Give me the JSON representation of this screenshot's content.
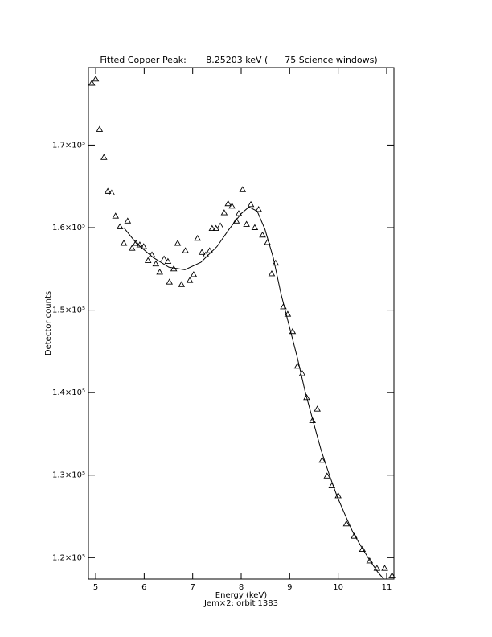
{
  "chart_data": {
    "type": "scatter",
    "title": "Fitted Copper Peak:       8.25203 keV (      75 Science windows)",
    "x_label": "Energy (keV)",
    "subtitle": "Jem×2: orbit 1383",
    "y_label": "Detector counts",
    "xlim": [
      4.85,
      11.15
    ],
    "ylim": [
      117400,
      179400
    ],
    "xticks": [
      5,
      6,
      7,
      8,
      9,
      10,
      11
    ],
    "yticks": [
      {
        "value": 120000,
        "label": "1.2×10⁵"
      },
      {
        "value": 130000,
        "label": "1.3×10⁵"
      },
      {
        "value": 140000,
        "label": "1.4×10⁵"
      },
      {
        "value": 150000,
        "label": "1.5×10⁵"
      },
      {
        "value": 160000,
        "label": "1.6×10⁵"
      },
      {
        "value": 170000,
        "label": "1.7×10⁵"
      }
    ],
    "color": "#000000",
    "series": [
      {
        "kind": "markers",
        "x": [
          4.92,
          5.0,
          5.08,
          5.17,
          5.25,
          5.33,
          5.41,
          5.5,
          5.58,
          5.66,
          5.75,
          5.83,
          5.91,
          5.99,
          6.08,
          6.16,
          6.24,
          6.32,
          6.41,
          6.49,
          6.52,
          6.61,
          6.69,
          6.77,
          6.85,
          6.94,
          7.02,
          7.1,
          7.19,
          7.27,
          7.35,
          7.4,
          7.48,
          7.57,
          7.65,
          7.73,
          7.81,
          7.9,
          7.95,
          8.03,
          8.11,
          8.2,
          8.28,
          8.36,
          8.44,
          8.54,
          8.63,
          8.71,
          8.87,
          8.96,
          9.06,
          9.16,
          9.26,
          9.35,
          9.47,
          9.57,
          9.67,
          9.77,
          9.87,
          10.0,
          10.17,
          10.33,
          10.5,
          10.65,
          10.8,
          10.96,
          11.11
        ],
        "values": [
          177500,
          178000,
          171900,
          168500,
          164400,
          164200,
          161400,
          160100,
          158100,
          160800,
          157500,
          158100,
          157900,
          157700,
          156000,
          156700,
          155600,
          154600,
          156200,
          155900,
          153400,
          155000,
          158100,
          153100,
          157200,
          153600,
          154300,
          158700,
          157000,
          156700,
          157200,
          159900,
          159900,
          160200,
          161800,
          162900,
          162600,
          160800,
          161700,
          164600,
          160400,
          162800,
          160000,
          162200,
          159100,
          158200,
          154400,
          155700,
          150400,
          149500,
          147400,
          143200,
          142300,
          139400,
          136600,
          138000,
          131800,
          129900,
          128700,
          127500,
          124100,
          122600,
          121000,
          119600,
          118700,
          118700,
          117800
        ]
      },
      {
        "kind": "line",
        "x": [
          5.58,
          5.84,
          6.18,
          6.51,
          6.84,
          7.17,
          7.5,
          7.75,
          8.0,
          8.16,
          8.33,
          8.49,
          8.66,
          8.82,
          8.99,
          9.16,
          9.32,
          9.49,
          9.65,
          9.82,
          9.98,
          10.15,
          10.31,
          10.48,
          10.65,
          10.81,
          10.94
        ],
        "values": [
          160000,
          158100,
          156400,
          155200,
          154900,
          155800,
          157700,
          159800,
          161700,
          162500,
          162000,
          159800,
          156400,
          152000,
          148100,
          144200,
          140100,
          136400,
          133000,
          130000,
          127400,
          125100,
          123000,
          121300,
          119700,
          118300,
          117400
        ]
      }
    ]
  }
}
